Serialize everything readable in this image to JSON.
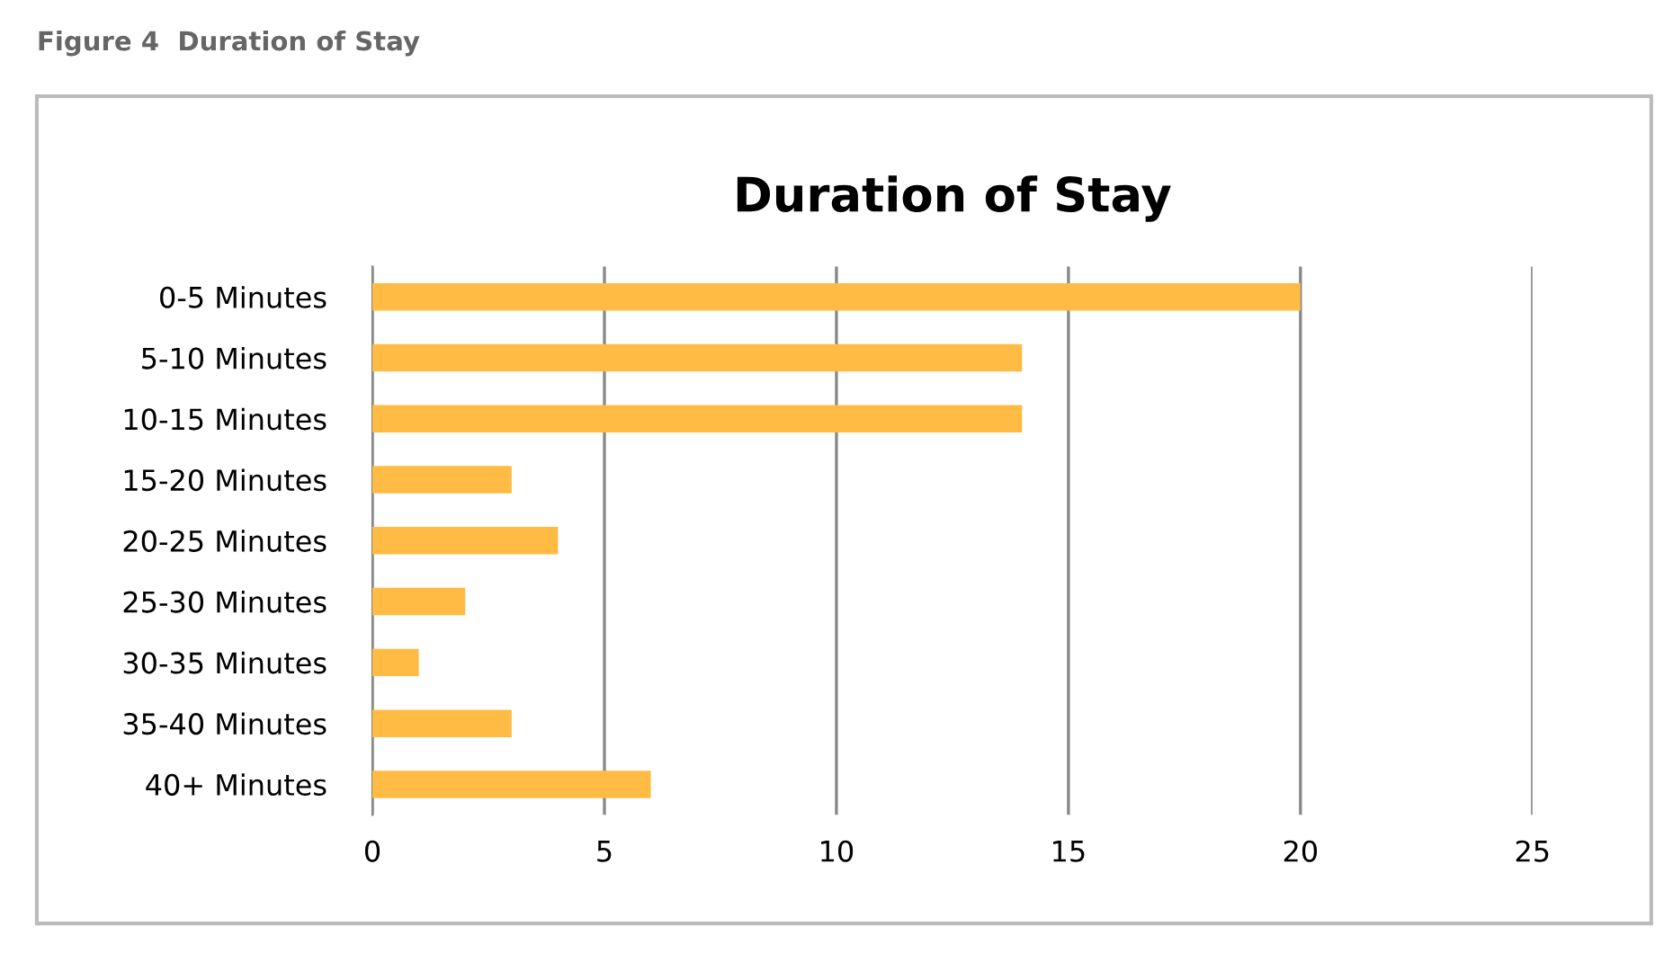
{
  "chart_data": {
    "type": "bar",
    "orientation": "horizontal",
    "title": "Duration of Stay",
    "annotations": [
      "Figure 4  Duration of Stay"
    ],
    "categories": [
      "0-5 Minutes",
      "5-10 Minutes",
      "10-15 Minutes",
      "15-20 Minutes",
      "20-25 Minutes",
      "25-30 Minutes",
      "30-35 Minutes",
      "35-40 Minutes",
      "40+ Minutes"
    ],
    "values": [
      20,
      14,
      14,
      3,
      4,
      2,
      1,
      3,
      6
    ],
    "color": "#ffbb44",
    "xlim": [
      0,
      25
    ],
    "xticks": [
      0,
      5,
      10,
      15,
      20,
      25
    ],
    "grid": "x",
    "legend": false
  }
}
